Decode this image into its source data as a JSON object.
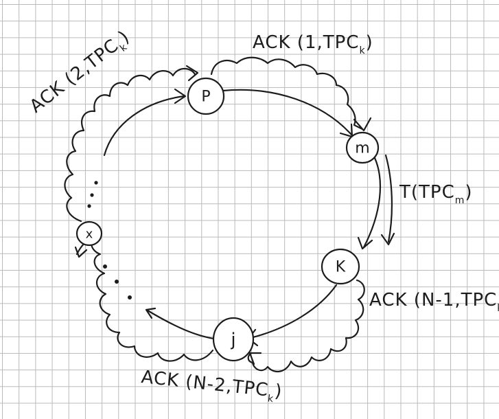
{
  "nodes": {
    "p": "P",
    "m": "m",
    "k": "K",
    "j": "j",
    "x": "x"
  },
  "messages": {
    "ack_1": {
      "main": "ACK (1,TPC",
      "sub": "k",
      "close": ")"
    },
    "ack_2": {
      "main": "ACK (2,TPC",
      "sub": "k",
      "close": ")"
    },
    "token": {
      "main": "T(TPC",
      "sub": "m",
      "close": ")"
    },
    "ack_n1": {
      "main": "ACK (N-1,TPC",
      "sub": "k",
      "close": ")"
    },
    "ack_n2": {
      "main": "ACK (N-2,TPC",
      "sub": "k",
      "close": ")"
    }
  }
}
